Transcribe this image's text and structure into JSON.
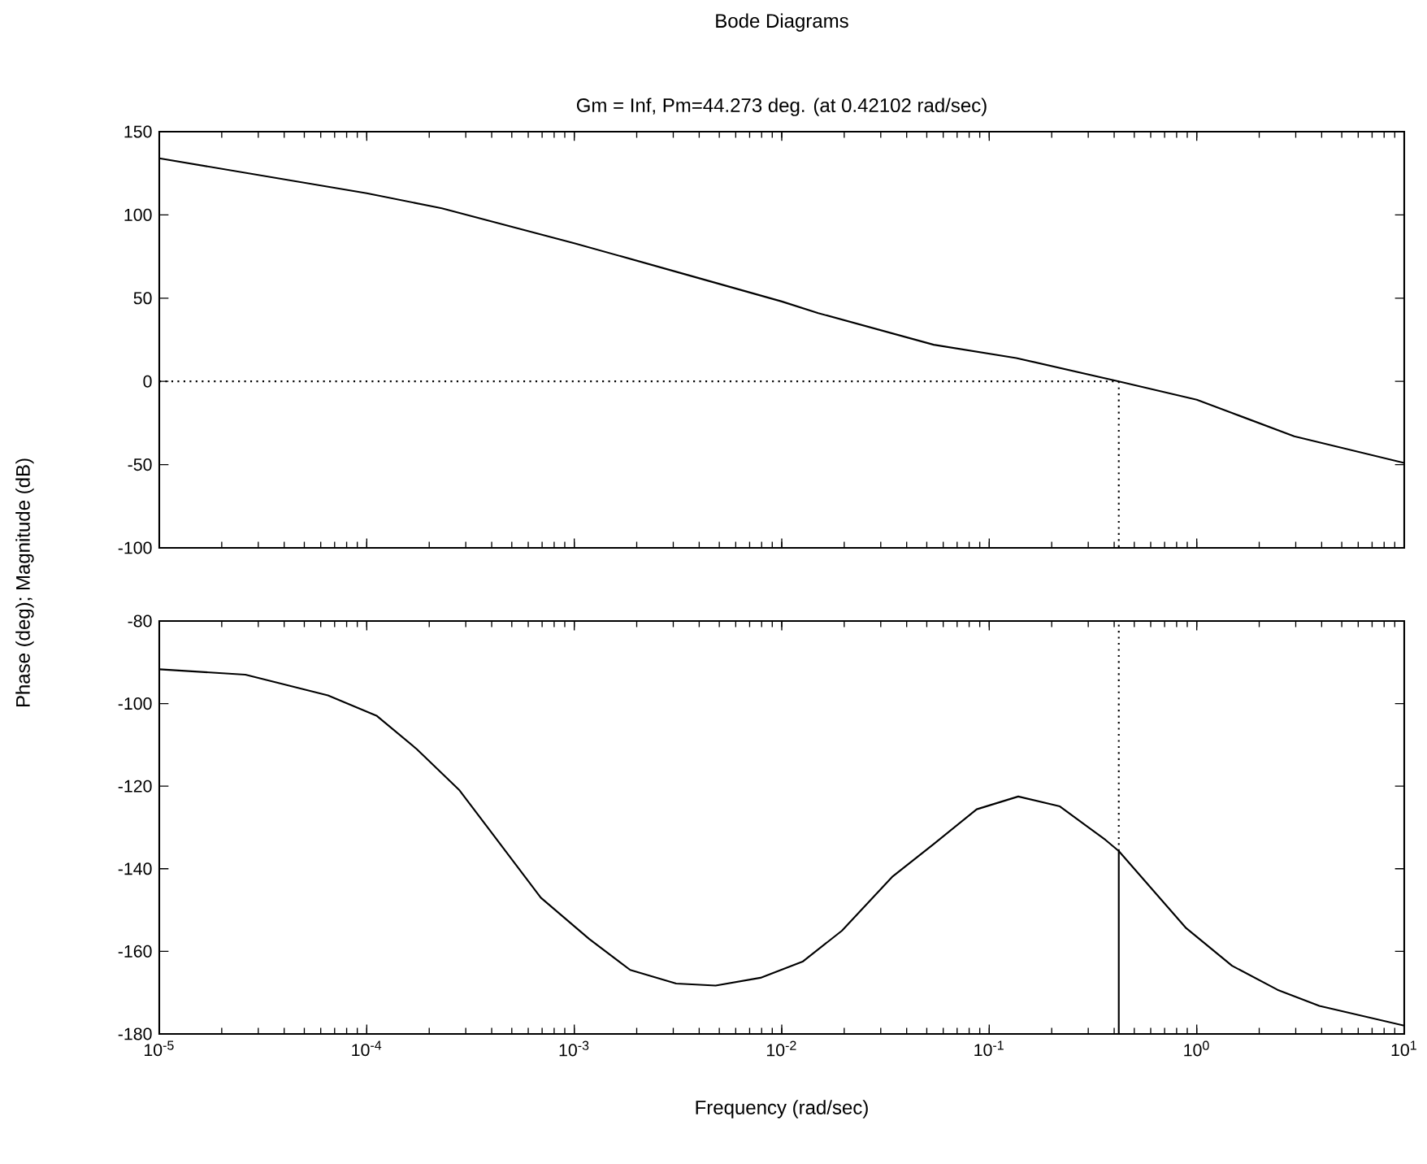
{
  "chart_data": [
    {
      "type": "line",
      "title": "Bode Diagrams",
      "subtitle": "Gm = Inf, Pm=44.273 deg. (at 0.42102 rad/sec)",
      "ylabel": "Phase (deg); Magnitude (dB)",
      "log": "x",
      "grid": false,
      "tick_labels": "y",
      "xlim": [
        1e-05,
        10
      ],
      "ylim": [
        -100,
        150
      ],
      "xticks": [
        {
          "value": 1e-05,
          "label": null
        },
        {
          "value": 0.0001,
          "label": null
        },
        {
          "value": 0.001,
          "label": null
        },
        {
          "value": 0.01,
          "label": null
        },
        {
          "value": 0.1,
          "label": null
        },
        {
          "value": 1,
          "label": null
        },
        {
          "value": 10,
          "label": null
        }
      ],
      "yticks": [
        -100,
        -50,
        0,
        50,
        100,
        150
      ],
      "series": [
        {
          "color": "#000000",
          "line_style": "solid",
          "x": [
            1e-05,
            0.0001,
            0.00023,
            0.001,
            0.0035,
            0.01,
            0.015,
            0.054,
            0.135,
            0.42102,
            1,
            2.95,
            10
          ],
          "values": [
            134,
            113,
            104,
            83,
            64,
            48,
            41,
            22,
            14,
            0,
            -11,
            -33,
            -49
          ]
        },
        {
          "color": "#000000",
          "line_style": "dotted",
          "x": [
            1e-05,
            0.42102
          ],
          "values": [
            0,
            0
          ]
        },
        {
          "color": "#000000",
          "line_style": "dotted",
          "x": [
            0.42102,
            0.42102
          ],
          "values": [
            0,
            -100
          ]
        }
      ]
    },
    {
      "type": "line",
      "xlabel": "Frequency (rad/sec)",
      "log": "x",
      "grid": false,
      "xlim": [
        1e-05,
        10
      ],
      "ylim": [
        -180,
        -80
      ],
      "xticks": [
        {
          "value": 1e-05,
          "label": "10$^{-5}$"
        },
        {
          "value": 0.0001,
          "label": "10$^{-4}$"
        },
        {
          "value": 0.001,
          "label": "10$^{-3}$"
        },
        {
          "value": 0.01,
          "label": "10$^{-2}$"
        },
        {
          "value": 0.1,
          "label": "10$^{-1}$"
        },
        {
          "value": 1,
          "label": "10$^{0}$"
        },
        {
          "value": 10,
          "label": "10$^{1}$"
        }
      ],
      "yticks": [
        -180,
        -160,
        -140,
        -120,
        -100,
        -80
      ],
      "series": [
        {
          "color": "#000000",
          "line_style": "solid",
          "x": [
            1e-05,
            2.6e-05,
            6.5e-05,
            0.000112,
            0.000174,
            0.00028,
            0.00069,
            0.00118,
            0.00186,
            0.0031,
            0.0048,
            0.0079,
            0.0126,
            0.0195,
            0.034,
            0.054,
            0.087,
            0.138,
            0.219,
            0.363,
            0.42102,
            0.89,
            1.48,
            2.45,
            3.9,
            10
          ],
          "values": [
            -91.7,
            -93,
            -98,
            -103,
            -111,
            -121,
            -147,
            -157,
            -164.5,
            -167.8,
            -168.3,
            -166.4,
            -162.5,
            -155,
            -142,
            -134,
            -125.6,
            -122.5,
            -124.9,
            -133,
            -135.7,
            -154.4,
            -163.5,
            -169.3,
            -173.2,
            -178
          ]
        },
        {
          "color": "#000000",
          "line_style": "dotted",
          "x": [
            0.42102,
            0.42102
          ],
          "values": [
            -135.7,
            -80
          ]
        },
        {
          "color": "#000000",
          "line_style": "solid",
          "x": [
            0.42102,
            0.42102
          ],
          "values": [
            -180,
            -135.7
          ]
        }
      ]
    }
  ]
}
